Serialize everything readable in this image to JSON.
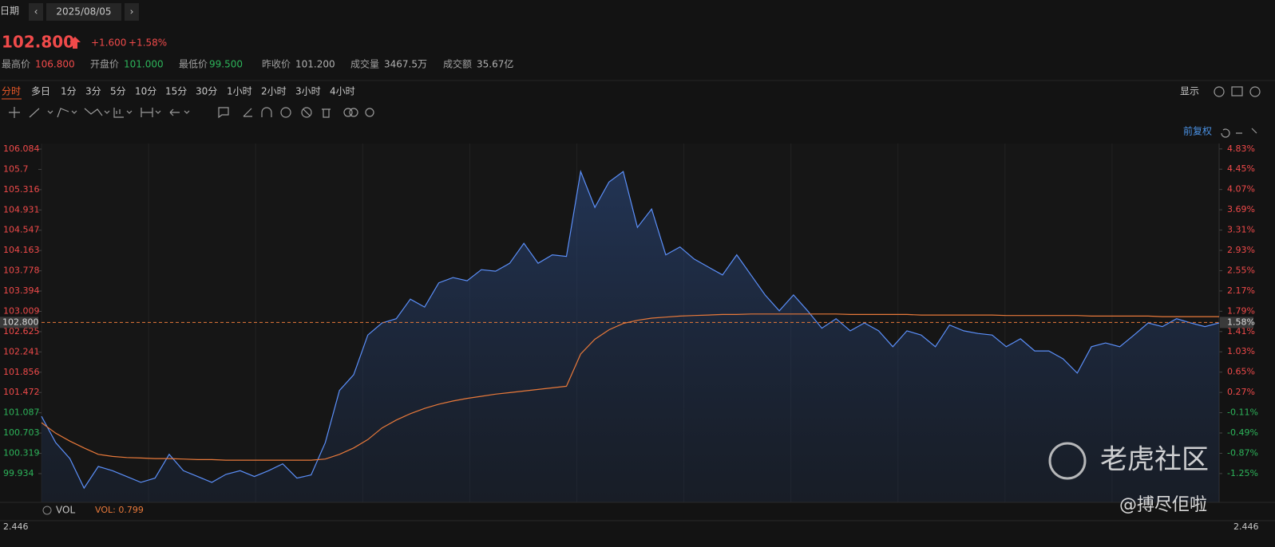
{
  "header": {
    "date_label": "日期",
    "date": "2025/08/05"
  },
  "quote": {
    "price": "102.800",
    "change": "+1.600",
    "change_pct": "+1.58%",
    "stats": [
      {
        "label": "最高价",
        "value": "106.800",
        "color": "#f04a4a"
      },
      {
        "label": "开盘价",
        "value": "101.000",
        "color": "#2db45a"
      },
      {
        "label": "最低价",
        "value": "99.500",
        "color": "#2db45a"
      },
      {
        "label": "昨收价",
        "value": "101.200",
        "color": "#b0b0b0"
      },
      {
        "label": "成交量",
        "value": "3467.5万",
        "color": "#b0b0b0"
      },
      {
        "label": "成交额",
        "value": "35.67亿",
        "color": "#b0b0b0"
      }
    ]
  },
  "periods": [
    "分时",
    "多日",
    "1分",
    "3分",
    "5分",
    "10分",
    "15分",
    "30分",
    "1小时",
    "2小时",
    "3小时",
    "4小时"
  ],
  "active_period": 0,
  "display": "显示",
  "adjust": "前复权",
  "chart_data": {
    "type": "line",
    "categories": [
      null,
      null,
      null,
      null,
      null,
      null,
      null,
      null,
      null,
      null,
      null,
      null,
      null,
      null,
      null,
      null,
      null,
      null,
      null,
      null,
      null,
      null,
      null,
      null,
      null,
      null,
      null,
      null,
      null,
      null,
      null,
      null,
      null,
      null,
      null,
      null,
      null,
      null,
      null,
      null,
      null,
      null,
      null,
      null,
      null,
      null,
      null,
      null,
      null,
      null,
      null,
      null,
      null,
      null,
      null,
      null,
      null,
      null,
      null,
      null,
      null,
      null,
      null,
      null,
      null,
      null,
      null,
      null,
      null,
      null,
      null,
      null,
      null,
      null,
      null,
      null,
      null,
      null,
      null,
      null,
      null,
      null,
      null,
      null
    ],
    "series": [
      {
        "color": "#5b8ff9",
        "area": true,
        "values": [
          101.02,
          100.52,
          100.22,
          99.66,
          100.07,
          99.99,
          99.88,
          99.77,
          99.85,
          100.3,
          99.99,
          99.88,
          99.77,
          99.92,
          99.99,
          99.88,
          99.99,
          100.12,
          99.85,
          99.91,
          100.52,
          101.51,
          101.81,
          102.56,
          102.79,
          102.87,
          103.24,
          103.09,
          103.55,
          103.65,
          103.59,
          103.8,
          103.77,
          103.92,
          104.3,
          103.92,
          104.08,
          104.05,
          105.66,
          104.98,
          105.46,
          105.66,
          104.6,
          104.95,
          104.08,
          104.23,
          104.0,
          103.85,
          103.7,
          104.08,
          103.7,
          103.32,
          103.02,
          103.32,
          103.02,
          102.69,
          102.87,
          102.64,
          102.79,
          102.64,
          102.34,
          102.64,
          102.56,
          102.34,
          102.75,
          102.64,
          102.59,
          102.56,
          102.34,
          102.49,
          102.26,
          102.26,
          102.11,
          101.84,
          102.34,
          102.41,
          102.34,
          102.56,
          102.79,
          102.72,
          102.87,
          102.79,
          102.72,
          102.79
        ]
      },
      {
        "color": "#e8793a",
        "area": false,
        "values": [
          100.9,
          100.7,
          100.55,
          100.42,
          100.3,
          100.26,
          100.24,
          100.23,
          100.22,
          100.22,
          100.21,
          100.2,
          100.2,
          100.19,
          100.19,
          100.19,
          100.19,
          100.19,
          100.19,
          100.19,
          100.21,
          100.3,
          100.42,
          100.58,
          100.8,
          100.95,
          101.07,
          101.17,
          101.25,
          101.31,
          101.36,
          101.4,
          101.44,
          101.47,
          101.5,
          101.53,
          101.56,
          101.59,
          102.2,
          102.48,
          102.66,
          102.78,
          102.84,
          102.88,
          102.9,
          102.92,
          102.93,
          102.94,
          102.95,
          102.95,
          102.96,
          102.96,
          102.96,
          102.96,
          102.96,
          102.96,
          102.96,
          102.95,
          102.95,
          102.95,
          102.95,
          102.95,
          102.94,
          102.94,
          102.94,
          102.94,
          102.94,
          102.94,
          102.93,
          102.93,
          102.93,
          102.93,
          102.93,
          102.93,
          102.92,
          102.92,
          102.92,
          102.92,
          102.92,
          102.91,
          102.91,
          102.91,
          102.91,
          102.91
        ]
      }
    ],
    "ylim": [
      99.39,
      106.19
    ],
    "yticks": [
      106.084,
      105.7,
      {
        "value": 105.316,
        "label": "105.316"
      },
      104.931,
      104.547,
      104.163,
      103.778,
      103.394,
      103.009,
      102.625,
      102.241,
      101.856,
      101.472,
      101.087,
      100.703,
      100.319,
      99.934
    ],
    "y2lim": [
      -1.789,
      4.931
    ],
    "y2ticks": [
      {
        "value": 4.83,
        "label": "4.83%"
      },
      {
        "value": 4.45,
        "label": "4.45%"
      },
      {
        "value": 4.07,
        "label": "4.07%"
      },
      {
        "value": 3.69,
        "label": "3.69%"
      },
      {
        "value": 3.31,
        "label": "3.31%"
      },
      {
        "value": 2.93,
        "label": "2.93%"
      },
      {
        "value": 2.55,
        "label": "2.55%"
      },
      {
        "value": 2.17,
        "label": "2.17%"
      },
      {
        "value": 1.79,
        "label": "1.79%"
      },
      {
        "value": 1.41,
        "label": "1.41%"
      },
      {
        "value": 1.03,
        "label": "1.03%"
      },
      {
        "value": 0.65,
        "label": "0.65%"
      },
      {
        "value": 0.27,
        "label": "0.27%"
      },
      {
        "value": -0.11,
        "label": "-0.11%"
      },
      {
        "value": -0.49,
        "label": "-0.49%"
      },
      {
        "value": -0.87,
        "label": "-0.87%"
      },
      {
        "value": -1.25,
        "label": "-1.25%"
      }
    ],
    "last_price": {
      "value": 102.8,
      "label": "102.800"
    },
    "last_pct": {
      "value": 1.58,
      "label": "1.58%"
    },
    "up_color": "#f04a4a",
    "down_color": "#2db45a"
  },
  "volume": {
    "label": "VOL",
    "value_label": "VOL: 0.799",
    "scale_left": "2.446",
    "scale_right": "2.446"
  },
  "watermark": {
    "brand": "老虎社区",
    "author": "@搏尽佢啦"
  }
}
